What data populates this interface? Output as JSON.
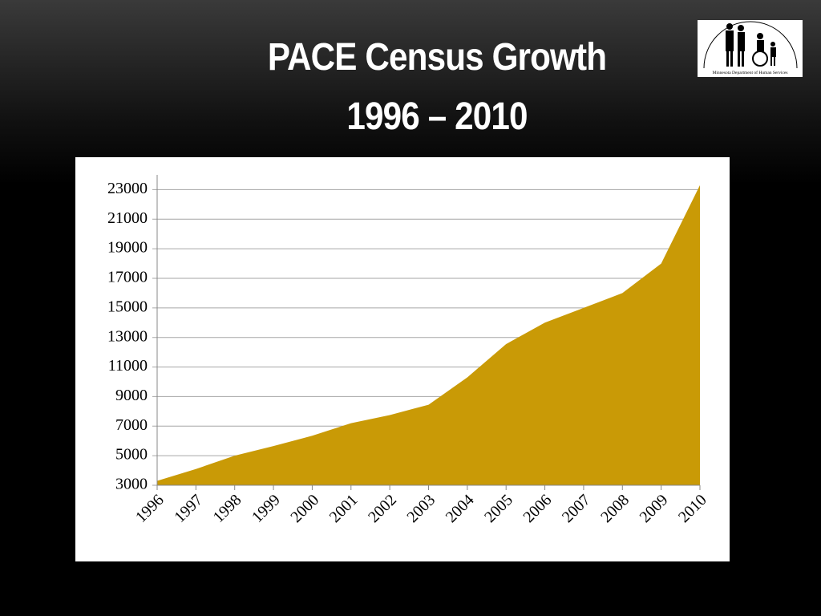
{
  "logo_text": "Minnesota Department of Human Services",
  "chart_data": {
    "type": "area",
    "title": "PACE Census Growth",
    "subtitle": "1996 – 2010",
    "categories": [
      "1996",
      "1997",
      "1998",
      "1999",
      "2000",
      "2001",
      "2002",
      "2003",
      "2004",
      "2005",
      "2006",
      "2007",
      "2008",
      "2009",
      "2010"
    ],
    "values": [
      3300,
      4100,
      5000,
      5650,
      6350,
      7200,
      7750,
      8450,
      10300,
      12550,
      14000,
      15000,
      16000,
      18000,
      23300
    ],
    "color": "#c99a06",
    "ylim": [
      3000,
      24000
    ],
    "yticks": [
      3000,
      5000,
      7000,
      9000,
      11000,
      13000,
      15000,
      17000,
      19000,
      21000,
      23000
    ],
    "grid": true
  }
}
